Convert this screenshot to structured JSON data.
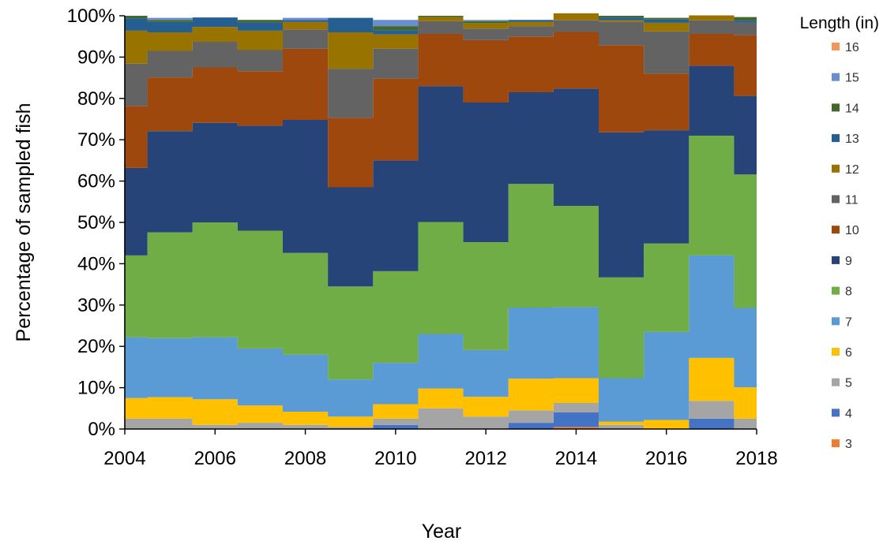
{
  "chart_data": {
    "type": "area",
    "stacked": true,
    "step": true,
    "xlabel": "Year",
    "ylabel": "Percentage of sampled fish",
    "legend_title": "Length (in)",
    "legend_position": "right",
    "xlim": [
      2004,
      2018
    ],
    "ylim": [
      0,
      100
    ],
    "x_ticks": [
      "2004",
      "2006",
      "2008",
      "2010",
      "2012",
      "2014",
      "2016",
      "2018"
    ],
    "y_ticks": [
      "0%",
      "10%",
      "20%",
      "30%",
      "40%",
      "50%",
      "60%",
      "70%",
      "80%",
      "90%",
      "100%"
    ],
    "x": [
      2004,
      2005,
      2006,
      2007,
      2008,
      2009,
      2010,
      2011,
      2012,
      2013,
      2014,
      2015,
      2016,
      2017,
      2018
    ],
    "series": [
      {
        "name": "3",
        "color": "#ED7D31",
        "values": [
          0,
          0,
          0,
          0,
          0,
          0,
          0,
          0,
          0,
          0,
          0.5,
          0,
          0,
          0,
          0
        ]
      },
      {
        "name": "4",
        "color": "#4472C4",
        "values": [
          0,
          0,
          0,
          0,
          0,
          0,
          1,
          0,
          0,
          1.5,
          3.5,
          0,
          0,
          2.5,
          0
        ]
      },
      {
        "name": "5",
        "color": "#A5A5A5",
        "values": [
          2.5,
          2.5,
          1,
          1.5,
          1,
          0.5,
          1.5,
          5,
          3,
          3,
          2.3,
          1,
          0,
          4.3,
          2.5
        ]
      },
      {
        "name": "6",
        "color": "#FFC000",
        "values": [
          5,
          5.2,
          6.2,
          4.2,
          3.2,
          2.5,
          3.5,
          4.8,
          4.8,
          7.7,
          6,
          0.8,
          2.2,
          10.4,
          7.6
        ]
      },
      {
        "name": "7",
        "color": "#5B9BD5",
        "values": [
          14.7,
          14.3,
          15,
          13.8,
          13.8,
          9,
          10,
          13.2,
          11.3,
          17.2,
          17.2,
          10.5,
          21.3,
          24.8,
          19.2
        ]
      },
      {
        "name": "8",
        "color": "#70AD47",
        "values": [
          19.8,
          25.6,
          27.8,
          28.5,
          24.6,
          22.5,
          22.2,
          27.1,
          26.1,
          29.9,
          24.5,
          24.4,
          21.4,
          29,
          32.3
        ]
      },
      {
        "name": "9",
        "color": "#264478",
        "values": [
          21.2,
          24.5,
          24.1,
          25.4,
          32.2,
          24,
          26.8,
          32.9,
          33.8,
          22.2,
          28.4,
          35.1,
          27.4,
          16.9,
          19
        ]
      },
      {
        "name": "10",
        "color": "#9E480E",
        "values": [
          15,
          13,
          13.4,
          13.2,
          17.2,
          16.8,
          19.8,
          12.6,
          15.1,
          13.5,
          13.7,
          21.1,
          13.7,
          7.7,
          14.7
        ]
      },
      {
        "name": "11",
        "color": "#636363",
        "values": [
          10.2,
          6.4,
          6.2,
          5.1,
          4.7,
          11.9,
          7.2,
          3.1,
          2.8,
          2.5,
          2.8,
          5.6,
          10.2,
          3.3,
          3
        ]
      },
      {
        "name": "12",
        "color": "#997300",
        "values": [
          8,
          4.5,
          3.6,
          4.7,
          1.8,
          8.8,
          3.5,
          1,
          1.3,
          1,
          1.7,
          0.4,
          2.1,
          1.2,
          0
        ]
      },
      {
        "name": "13",
        "color": "#255E91",
        "values": [
          3,
          2.5,
          2.3,
          2,
          0.5,
          3.5,
          1,
          0,
          0,
          0.5,
          0,
          0.7,
          0.8,
          0,
          0.5
        ]
      },
      {
        "name": "14",
        "color": "#43682B",
        "values": [
          0.6,
          0.5,
          0,
          0.6,
          0,
          0,
          1,
          0.3,
          0.5,
          0,
          0,
          0.4,
          0.4,
          0,
          0.9
        ]
      },
      {
        "name": "15",
        "color": "#698ED0",
        "values": [
          0,
          0.5,
          0,
          0,
          0.5,
          0,
          1.5,
          0,
          0.3,
          0,
          0,
          0,
          0,
          0,
          0
        ]
      },
      {
        "name": "16",
        "color": "#F1975A",
        "values": [
          0,
          0,
          0,
          0,
          0,
          0,
          0,
          0,
          0,
          0,
          0,
          0,
          0,
          0,
          0
        ]
      }
    ]
  }
}
